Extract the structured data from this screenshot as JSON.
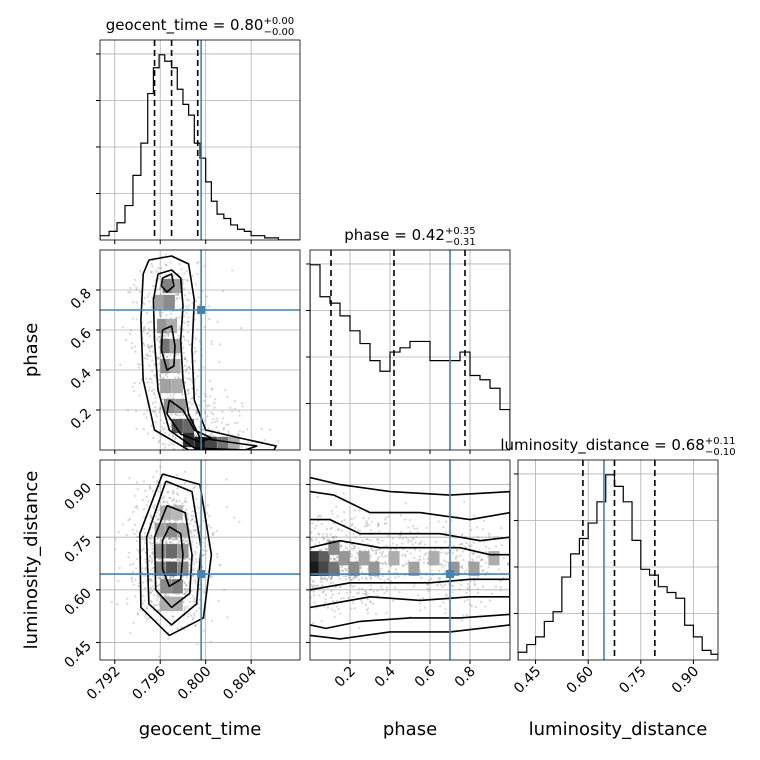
{
  "chart_data": {
    "type": "corner",
    "parameters": [
      "geocent_time",
      "phase",
      "luminosity_distance"
    ],
    "truth_color": "#4682b4",
    "truths": {
      "geocent_time": 0.7996,
      "phase": 0.7,
      "luminosity_distance": 0.645
    },
    "titles": [
      {
        "param": "geocent_time",
        "prefix": "geocent_time = ",
        "median": "0.80",
        "upper": "+0.00",
        "lower": "−0.00"
      },
      {
        "param": "phase",
        "prefix": "phase = ",
        "median": "0.42",
        "upper": "+0.35",
        "lower": "−0.31"
      },
      {
        "param": "luminosity_distance",
        "prefix": "luminosity_distance = ",
        "median": "0.68",
        "upper": "+0.11",
        "lower": "−0.10"
      }
    ],
    "axes": {
      "geocent_time": {
        "range": [
          0.7907,
          0.8083
        ],
        "ticks": [
          "0.792",
          "0.796",
          "0.800",
          "0.804"
        ],
        "tick_values": [
          0.792,
          0.796,
          0.8,
          0.804
        ]
      },
      "phase": {
        "range": [
          0.0,
          1.0
        ],
        "ticks": [
          "0.2",
          "0.4",
          "0.6",
          "0.8"
        ],
        "tick_values": [
          0.2,
          0.4,
          0.6,
          0.8
        ]
      },
      "luminosity_distance": {
        "range": [
          0.4,
          0.97
        ],
        "ticks": [
          "0.45",
          "0.60",
          "0.75",
          "0.90"
        ],
        "tick_values": [
          0.45,
          0.6,
          0.75,
          0.9
        ]
      }
    },
    "histograms": {
      "geocent_time": {
        "quantiles": [
          0.7955,
          0.797,
          0.7993
        ],
        "edges": [
          0.7907,
          0.7915,
          0.7922,
          0.7929,
          0.7936,
          0.7943,
          0.7949,
          0.7954,
          0.7959,
          0.7964,
          0.797,
          0.7975,
          0.798,
          0.7985,
          0.799,
          0.7995,
          0.8,
          0.8005,
          0.801,
          0.8016,
          0.8022,
          0.8028,
          0.8034,
          0.804,
          0.8046,
          0.8052,
          0.8058,
          0.8064,
          0.8083
        ],
        "values": [
          0.02,
          0.04,
          0.08,
          0.16,
          0.3,
          0.45,
          0.68,
          0.8,
          0.86,
          0.83,
          0.8,
          0.7,
          0.63,
          0.58,
          0.45,
          0.38,
          0.27,
          0.18,
          0.12,
          0.1,
          0.07,
          0.05,
          0.04,
          0.02,
          0.02,
          0.01,
          0.01,
          0.0
        ]
      },
      "phase": {
        "quantiles": [
          0.105,
          0.42,
          0.775
        ],
        "edges": [
          0.0,
          0.05,
          0.1,
          0.15,
          0.2,
          0.25,
          0.3,
          0.35,
          0.4,
          0.45,
          0.5,
          0.55,
          0.6,
          0.65,
          0.7,
          0.75,
          0.8,
          0.85,
          0.9,
          0.95,
          1.0
        ],
        "values": [
          0.87,
          0.72,
          0.69,
          0.63,
          0.56,
          0.5,
          0.42,
          0.37,
          0.46,
          0.48,
          0.51,
          0.51,
          0.42,
          0.42,
          0.42,
          0.46,
          0.35,
          0.33,
          0.29,
          0.19
        ]
      },
      "luminosity_distance": {
        "quantiles": [
          0.585,
          0.675,
          0.79
        ],
        "edges": [
          0.4,
          0.425,
          0.45,
          0.475,
          0.5,
          0.525,
          0.55,
          0.575,
          0.6,
          0.625,
          0.65,
          0.675,
          0.7,
          0.725,
          0.75,
          0.775,
          0.8,
          0.825,
          0.85,
          0.875,
          0.9,
          0.925,
          0.95,
          0.97
        ],
        "values": [
          0.04,
          0.08,
          0.12,
          0.2,
          0.25,
          0.43,
          0.55,
          0.63,
          0.71,
          0.82,
          0.96,
          0.9,
          0.82,
          0.62,
          0.47,
          0.44,
          0.38,
          0.35,
          0.32,
          0.18,
          0.12,
          0.05,
          0.03
        ]
      }
    },
    "panels_2d": [
      {
        "x": "geocent_time",
        "y": "phase",
        "density_cells": [
          [
            0.7967,
            0.82,
            0.5
          ],
          [
            0.7975,
            0.82,
            0.35
          ],
          [
            0.796,
            0.74,
            0.35
          ],
          [
            0.7968,
            0.74,
            0.45
          ],
          [
            0.7962,
            0.62,
            0.4
          ],
          [
            0.797,
            0.62,
            0.3
          ],
          [
            0.7965,
            0.52,
            0.55
          ],
          [
            0.7973,
            0.52,
            0.35
          ],
          [
            0.7965,
            0.42,
            0.45
          ],
          [
            0.7973,
            0.42,
            0.3
          ],
          [
            0.7965,
            0.32,
            0.35
          ],
          [
            0.7975,
            0.32,
            0.3
          ],
          [
            0.7968,
            0.22,
            0.45
          ],
          [
            0.7978,
            0.22,
            0.4
          ],
          [
            0.7975,
            0.12,
            0.7
          ],
          [
            0.7985,
            0.12,
            0.6
          ],
          [
            0.7985,
            0.05,
            0.85
          ],
          [
            0.7995,
            0.03,
            0.95
          ],
          [
            0.8005,
            0.03,
            0.75
          ],
          [
            0.8015,
            0.03,
            0.55
          ],
          [
            0.8025,
            0.03,
            0.3
          ]
        ],
        "contours": [
          [
            [
              0.7958,
              0.88
            ],
            [
              0.797,
              0.9
            ],
            [
              0.7978,
              0.86
            ],
            [
              0.798,
              0.72
            ],
            [
              0.7978,
              0.55
            ],
            [
              0.798,
              0.35
            ],
            [
              0.7985,
              0.18
            ],
            [
              0.7995,
              0.06
            ],
            [
              0.802,
              0.04
            ],
            [
              0.8045,
              0.02
            ],
            [
              0.8035,
              0.0
            ],
            [
              0.799,
              0.01
            ],
            [
              0.7968,
              0.1
            ],
            [
              0.7958,
              0.3
            ],
            [
              0.7955,
              0.55
            ],
            [
              0.7954,
              0.75
            ],
            [
              0.7958,
              0.88
            ]
          ],
          [
            [
              0.795,
              0.95
            ],
            [
              0.797,
              0.97
            ],
            [
              0.7985,
              0.93
            ],
            [
              0.799,
              0.75
            ],
            [
              0.7988,
              0.5
            ],
            [
              0.799,
              0.25
            ],
            [
              0.8,
              0.1
            ],
            [
              0.803,
              0.06
            ],
            [
              0.8062,
              0.02
            ],
            [
              0.806,
              0.0
            ],
            [
              0.7985,
              0.0
            ],
            [
              0.7955,
              0.1
            ],
            [
              0.7945,
              0.35
            ],
            [
              0.7943,
              0.65
            ],
            [
              0.7945,
              0.88
            ],
            [
              0.795,
              0.95
            ]
          ],
          [
            [
              0.7962,
              0.86
            ],
            [
              0.797,
              0.88
            ],
            [
              0.7972,
              0.82
            ],
            [
              0.7966,
              0.79
            ],
            [
              0.7961,
              0.82
            ],
            [
              0.7962,
              0.86
            ]
          ],
          [
            [
              0.7962,
              0.6
            ],
            [
              0.797,
              0.62
            ],
            [
              0.7973,
              0.52
            ],
            [
              0.7972,
              0.42
            ],
            [
              0.7966,
              0.4
            ],
            [
              0.7961,
              0.5
            ],
            [
              0.7962,
              0.6
            ]
          ],
          [
            [
              0.7968,
              0.25
            ],
            [
              0.798,
              0.2
            ],
            [
              0.799,
              0.1
            ],
            [
              0.8005,
              0.06
            ],
            [
              0.7995,
              0.04
            ],
            [
              0.7978,
              0.08
            ],
            [
              0.7966,
              0.18
            ],
            [
              0.7968,
              0.25
            ]
          ]
        ],
        "scatter_seed": 11
      },
      {
        "x": "geocent_time",
        "y": "luminosity_distance",
        "density_cells": [
          [
            0.7965,
            0.82,
            0.3
          ],
          [
            0.7975,
            0.82,
            0.25
          ],
          [
            0.796,
            0.77,
            0.35
          ],
          [
            0.797,
            0.77,
            0.45
          ],
          [
            0.798,
            0.77,
            0.3
          ],
          [
            0.796,
            0.71,
            0.45
          ],
          [
            0.797,
            0.71,
            0.6
          ],
          [
            0.798,
            0.71,
            0.4
          ],
          [
            0.796,
            0.66,
            0.5
          ],
          [
            0.797,
            0.66,
            0.7
          ],
          [
            0.798,
            0.66,
            0.45
          ],
          [
            0.7965,
            0.61,
            0.45
          ],
          [
            0.7975,
            0.61,
            0.5
          ],
          [
            0.7965,
            0.56,
            0.3
          ],
          [
            0.7975,
            0.56,
            0.3
          ]
        ],
        "contours": [
          [
            [
              0.7968,
              0.78
            ],
            [
              0.7978,
              0.76
            ],
            [
              0.798,
              0.7
            ],
            [
              0.7978,
              0.63
            ],
            [
              0.7968,
              0.61
            ],
            [
              0.7962,
              0.66
            ],
            [
              0.7962,
              0.74
            ],
            [
              0.7968,
              0.78
            ]
          ],
          [
            [
              0.7966,
              0.84
            ],
            [
              0.7982,
              0.82
            ],
            [
              0.7988,
              0.7
            ],
            [
              0.7986,
              0.59
            ],
            [
              0.797,
              0.55
            ],
            [
              0.7956,
              0.6
            ],
            [
              0.7955,
              0.75
            ],
            [
              0.7966,
              0.84
            ]
          ],
          [
            [
              0.7965,
              0.91
            ],
            [
              0.7988,
              0.88
            ],
            [
              0.7996,
              0.72
            ],
            [
              0.7992,
              0.56
            ],
            [
              0.797,
              0.5
            ],
            [
              0.795,
              0.56
            ],
            [
              0.7948,
              0.75
            ],
            [
              0.7965,
              0.91
            ]
          ],
          [
            [
              0.7962,
              0.93
            ],
            [
              0.7995,
              0.9
            ],
            [
              0.8005,
              0.7
            ],
            [
              0.7998,
              0.52
            ],
            [
              0.7968,
              0.47
            ],
            [
              0.7943,
              0.55
            ],
            [
              0.7942,
              0.76
            ],
            [
              0.7962,
              0.93
            ]
          ]
        ],
        "scatter_seed": 23
      },
      {
        "x": "phase",
        "y": "luminosity_distance",
        "density_cells": [
          [
            0.02,
            0.69,
            0.85
          ],
          [
            0.02,
            0.66,
            0.95
          ],
          [
            0.07,
            0.69,
            0.65
          ],
          [
            0.07,
            0.66,
            0.75
          ],
          [
            0.12,
            0.72,
            0.45
          ],
          [
            0.12,
            0.66,
            0.55
          ],
          [
            0.17,
            0.69,
            0.4
          ],
          [
            0.22,
            0.66,
            0.45
          ],
          [
            0.27,
            0.69,
            0.35
          ],
          [
            0.32,
            0.66,
            0.4
          ],
          [
            0.42,
            0.69,
            0.3
          ],
          [
            0.52,
            0.66,
            0.35
          ],
          [
            0.62,
            0.69,
            0.3
          ],
          [
            0.72,
            0.66,
            0.4
          ],
          [
            0.82,
            0.66,
            0.35
          ],
          [
            0.92,
            0.69,
            0.3
          ]
        ],
        "contours": [
          [
            [
              0.0,
              0.72
            ],
            [
              0.15,
              0.74
            ],
            [
              0.35,
              0.72
            ],
            [
              0.55,
              0.72
            ],
            [
              0.75,
              0.72
            ],
            [
              0.9,
              0.7
            ],
            [
              1.0,
              0.7
            ],
            [
              1.0,
              0.63
            ],
            [
              0.8,
              0.63
            ],
            [
              0.6,
              0.62
            ],
            [
              0.4,
              0.62
            ],
            [
              0.2,
              0.62
            ],
            [
              0.0,
              0.6
            ]
          ],
          [
            [
              0.0,
              0.8
            ],
            [
              0.1,
              0.8
            ],
            [
              0.25,
              0.76
            ],
            [
              0.45,
              0.76
            ],
            [
              0.65,
              0.76
            ],
            [
              0.85,
              0.74
            ],
            [
              1.0,
              0.75
            ],
            [
              1.0,
              0.58
            ],
            [
              0.8,
              0.58
            ],
            [
              0.55,
              0.57
            ],
            [
              0.3,
              0.58
            ],
            [
              0.1,
              0.56
            ],
            [
              0.0,
              0.55
            ]
          ],
          [
            [
              0.0,
              0.88
            ],
            [
              0.12,
              0.87
            ],
            [
              0.3,
              0.82
            ],
            [
              0.55,
              0.82
            ],
            [
              0.8,
              0.8
            ],
            [
              1.0,
              0.82
            ],
            [
              1.0,
              0.53
            ],
            [
              0.75,
              0.52
            ],
            [
              0.5,
              0.52
            ],
            [
              0.25,
              0.51
            ],
            [
              0.08,
              0.49
            ],
            [
              0.0,
              0.5
            ]
          ],
          [
            [
              0.0,
              0.92
            ],
            [
              0.15,
              0.9
            ],
            [
              0.4,
              0.88
            ],
            [
              0.7,
              0.87
            ],
            [
              1.0,
              0.88
            ],
            [
              1.0,
              0.5
            ],
            [
              0.7,
              0.48
            ],
            [
              0.4,
              0.48
            ],
            [
              0.15,
              0.46
            ],
            [
              0.0,
              0.47
            ]
          ]
        ],
        "scatter_seed": 37
      }
    ]
  }
}
